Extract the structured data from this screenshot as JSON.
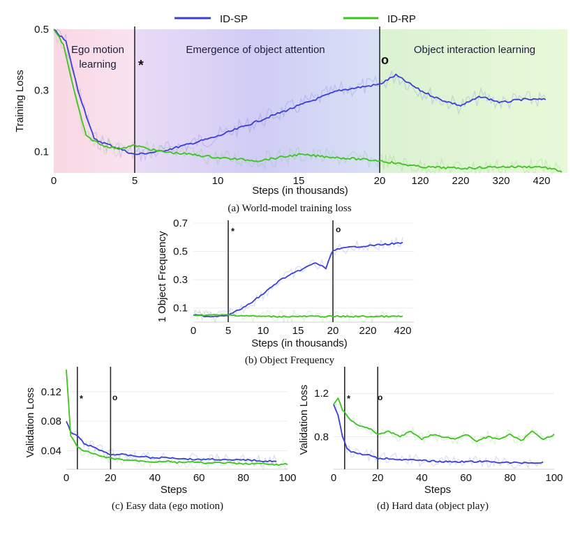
{
  "legend": [
    {
      "name": "ID-SP",
      "color": "#3a3fd6"
    },
    {
      "name": "ID-RP",
      "color": "#3dc41e"
    }
  ],
  "markers": {
    "star": "*",
    "circle": "o"
  },
  "chart_data": [
    {
      "id": "a",
      "type": "line",
      "caption": "(a) World-model training loss",
      "xlabel": "Steps (in thousands)",
      "ylabel": "Training Loss",
      "x_ticks": [
        "0",
        "5",
        "10",
        "15",
        "20",
        "120",
        "220",
        "320",
        "420"
      ],
      "y_ticks": [
        "0.1",
        "0.3",
        "0.5"
      ],
      "ylim": [
        0.03,
        0.5
      ],
      "phases": [
        {
          "label_lines": [
            "Ego motion",
            "learning"
          ],
          "color": "#f7c9d6"
        },
        {
          "label_lines": [
            "Emergence of object attention"
          ],
          "color": "#cfc9f3"
        },
        {
          "label_lines": [
            "Object interaction learning"
          ],
          "color": "#d3f3c6"
        }
      ],
      "vlines_at_tick": [
        1,
        4
      ],
      "series": [
        {
          "name": "ID-SP",
          "tick_index": [
            0,
            0.15,
            0.3,
            0.5,
            0.8,
            1.0,
            1.3,
            1.6,
            2.0,
            2.5,
            3.0,
            3.5,
            4.0,
            4.4,
            5.0,
            5.5,
            6.0,
            6.5,
            7.0,
            7.5,
            8.1
          ],
          "values": [
            0.5,
            0.46,
            0.3,
            0.14,
            0.11,
            0.09,
            0.1,
            0.12,
            0.15,
            0.2,
            0.25,
            0.3,
            0.32,
            0.35,
            0.3,
            0.27,
            0.25,
            0.28,
            0.26,
            0.27,
            0.27
          ]
        },
        {
          "name": "ID-RP",
          "tick_index": [
            0,
            0.12,
            0.25,
            0.4,
            0.6,
            0.8,
            1.0,
            1.3,
            1.7,
            2.0,
            2.5,
            3.0,
            3.5,
            4.0,
            4.5,
            5.0,
            6.0,
            7.0,
            8.0,
            8.5
          ],
          "values": [
            0.5,
            0.45,
            0.3,
            0.15,
            0.12,
            0.11,
            0.12,
            0.1,
            0.09,
            0.08,
            0.07,
            0.09,
            0.08,
            0.07,
            0.06,
            0.05,
            0.045,
            0.05,
            0.05,
            0.035
          ]
        }
      ]
    },
    {
      "id": "b",
      "type": "line",
      "caption": "(b) Object Frequency",
      "xlabel": "Steps (in thousands)",
      "ylabel": "1 Object Frequency",
      "x_ticks": [
        "0",
        "5",
        "10",
        "15",
        "20",
        "220",
        "420"
      ],
      "y_ticks": [
        "0.1",
        "0.3",
        "0.5",
        "0.7"
      ],
      "ylim": [
        0.0,
        0.7
      ],
      "vlines_at_tick": [
        1,
        4
      ],
      "series": [
        {
          "name": "ID-SP",
          "tick_index": [
            0,
            0.5,
            1.0,
            1.5,
            2.0,
            2.5,
            3.0,
            3.5,
            3.8,
            4.0,
            4.5,
            5.0,
            5.5,
            6.0
          ],
          "values": [
            0.05,
            0.04,
            0.05,
            0.11,
            0.2,
            0.3,
            0.36,
            0.42,
            0.38,
            0.51,
            0.53,
            0.54,
            0.55,
            0.56
          ]
        },
        {
          "name": "ID-RP",
          "tick_index": [
            0,
            1.0,
            2.0,
            3.0,
            4.0,
            5.0,
            6.0
          ],
          "values": [
            0.05,
            0.05,
            0.04,
            0.04,
            0.04,
            0.04,
            0.04
          ]
        }
      ]
    },
    {
      "id": "c",
      "type": "line",
      "caption": "(c) Easy data (ego motion)",
      "xlabel": "Steps",
      "ylabel": "Validation Loss",
      "x_ticks": [
        "0",
        "20",
        "40",
        "60",
        "80",
        "100"
      ],
      "x_range": [
        0,
        100
      ],
      "y_ticks": [
        "0.04",
        "0.08",
        "0.12"
      ],
      "ylim": [
        0.015,
        0.15
      ],
      "vlines_at_x": [
        5,
        20
      ],
      "series": [
        {
          "name": "ID-SP",
          "x": [
            0,
            2,
            5,
            8,
            12,
            16,
            20,
            25,
            30,
            35,
            40,
            45,
            50,
            55,
            60,
            65,
            70,
            75,
            80,
            85,
            90,
            95
          ],
          "values": [
            0.08,
            0.065,
            0.06,
            0.05,
            0.045,
            0.04,
            0.035,
            0.035,
            0.033,
            0.032,
            0.03,
            0.031,
            0.03,
            0.029,
            0.028,
            0.029,
            0.028,
            0.027,
            0.028,
            0.027,
            0.026,
            0.026
          ]
        },
        {
          "name": "ID-RP",
          "x": [
            0,
            2,
            5,
            8,
            12,
            16,
            20,
            25,
            30,
            35,
            40,
            45,
            50,
            55,
            60,
            65,
            70,
            75,
            80,
            85,
            90,
            95,
            100
          ],
          "values": [
            0.15,
            0.06,
            0.045,
            0.04,
            0.036,
            0.032,
            0.03,
            0.028,
            0.027,
            0.026,
            0.025,
            0.026,
            0.024,
            0.025,
            0.024,
            0.023,
            0.024,
            0.023,
            0.022,
            0.023,
            0.022,
            0.021,
            0.022
          ]
        }
      ]
    },
    {
      "id": "d",
      "type": "line",
      "caption": "(d) Hard data (object play)",
      "xlabel": "Steps",
      "ylabel": "Validation Loss",
      "x_ticks": [
        "0",
        "20",
        "40",
        "60",
        "80",
        "100"
      ],
      "x_range": [
        0,
        100
      ],
      "y_ticks": [
        "0.8",
        "1.2"
      ],
      "ylim": [
        0.5,
        1.42
      ],
      "vlines_at_x": [
        5,
        20
      ],
      "series": [
        {
          "name": "ID-SP",
          "x": [
            0,
            2,
            4,
            6,
            8,
            12,
            16,
            20,
            25,
            30,
            40,
            50,
            60,
            70,
            80,
            90,
            95
          ],
          "values": [
            1.1,
            1.0,
            0.8,
            0.7,
            0.66,
            0.64,
            0.63,
            0.6,
            0.6,
            0.59,
            0.58,
            0.57,
            0.57,
            0.57,
            0.56,
            0.56,
            0.56
          ]
        },
        {
          "name": "ID-RP",
          "x": [
            0,
            2,
            4,
            6,
            8,
            10,
            12,
            16,
            20,
            25,
            30,
            35,
            40,
            45,
            50,
            55,
            60,
            65,
            70,
            75,
            80,
            85,
            90,
            95,
            100
          ],
          "values": [
            1.1,
            1.15,
            1.05,
            1.0,
            0.95,
            0.92,
            0.9,
            0.88,
            0.82,
            0.85,
            0.8,
            0.85,
            0.78,
            0.82,
            0.8,
            0.78,
            0.82,
            0.76,
            0.8,
            0.78,
            0.82,
            0.76,
            0.85,
            0.78,
            0.82
          ]
        }
      ]
    }
  ]
}
